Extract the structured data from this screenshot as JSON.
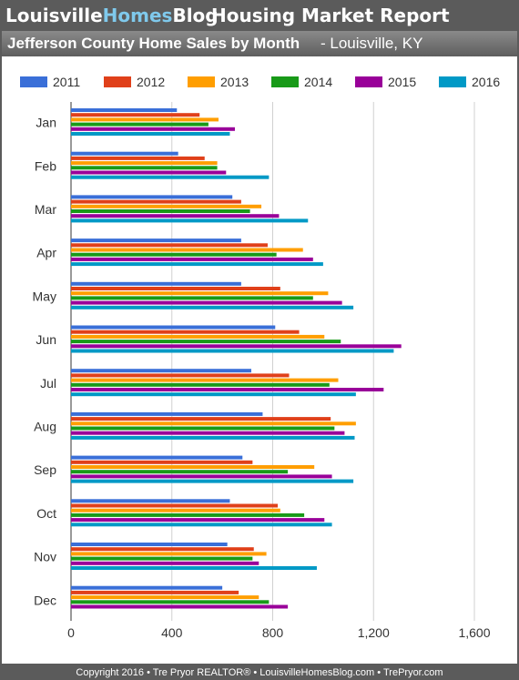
{
  "header": {
    "brand_part1": "Louisville",
    "brand_part2": "Homes",
    "brand_part3": "Blog",
    "title": "Housing Market Report"
  },
  "subtitle": {
    "main": "Jefferson County Home Sales by Month",
    "location": " - Louisville, KY"
  },
  "footer": {
    "text": "Copyright 2016 • Tre Pryor REALTOR® • LouisvilleHomesBlog.com • TrePryor.com"
  },
  "chart_data": {
    "type": "bar",
    "orientation": "horizontal",
    "categories": [
      "Jan",
      "Feb",
      "Mar",
      "Apr",
      "May",
      "Jun",
      "Jul",
      "Aug",
      "Sep",
      "Oct",
      "Nov",
      "Dec"
    ],
    "series": [
      {
        "name": "2011",
        "color": "#3a6fd8",
        "values": [
          420,
          425,
          640,
          675,
          675,
          810,
          715,
          760,
          680,
          630,
          620,
          600
        ]
      },
      {
        "name": "2012",
        "color": "#e0401a",
        "values": [
          510,
          530,
          675,
          780,
          830,
          905,
          865,
          1030,
          720,
          820,
          725,
          665
        ]
      },
      {
        "name": "2013",
        "color": "#ff9e00",
        "values": [
          585,
          580,
          755,
          920,
          1020,
          1005,
          1060,
          1130,
          965,
          830,
          775,
          745
        ]
      },
      {
        "name": "2014",
        "color": "#189a18",
        "values": [
          545,
          580,
          710,
          815,
          960,
          1070,
          1025,
          1045,
          860,
          925,
          720,
          785
        ]
      },
      {
        "name": "2015",
        "color": "#990099",
        "values": [
          650,
          615,
          825,
          960,
          1075,
          1310,
          1240,
          1085,
          1035,
          1005,
          745,
          860
        ]
      },
      {
        "name": "2016",
        "color": "#0099c6",
        "values": [
          630,
          785,
          940,
          1000,
          1120,
          1280,
          1130,
          1125,
          1120,
          1035,
          975,
          null
        ]
      }
    ],
    "xlim": [
      0,
      1700
    ],
    "xticks": [
      0,
      400,
      800,
      1200,
      1600
    ],
    "xtick_labels": [
      "0",
      "400",
      "800",
      "1,200",
      "1,600"
    ],
    "grid": true,
    "legend": "top"
  }
}
